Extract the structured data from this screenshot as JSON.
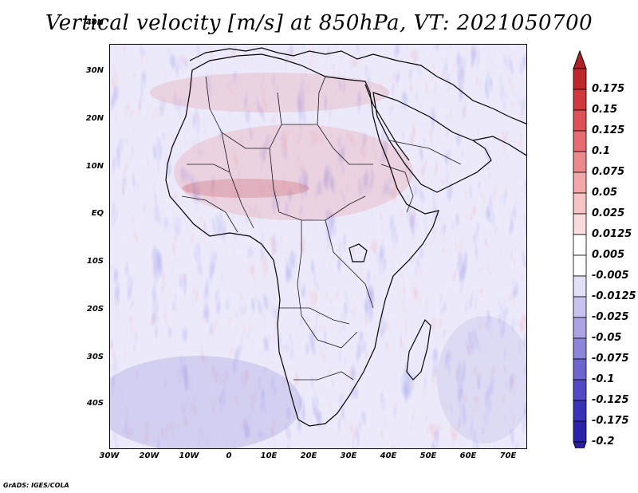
{
  "title": "Vertical velocity [m/s] at 850hPa, VT: 2021050700",
  "footer": "GrADS: IGES/COLA",
  "axes": {
    "lat_ticks": [
      "40N",
      "30N",
      "20N",
      "10N",
      "EQ",
      "10S",
      "20S",
      "30S",
      "40S"
    ],
    "lon_ticks": [
      "30W",
      "20W",
      "10W",
      "0",
      "10E",
      "20E",
      "30E",
      "40E",
      "50E",
      "60E",
      "70E"
    ]
  },
  "colorbar": {
    "labels": [
      "0.175",
      "0.15",
      "0.125",
      "0.1",
      "0.075",
      "0.05",
      "0.025",
      "0.0125",
      "0.005",
      "-0.005",
      "-0.0125",
      "-0.025",
      "-0.05",
      "-0.075",
      "-0.1",
      "-0.125",
      "-0.175",
      "-0.2"
    ],
    "colors": [
      "#c0272d",
      "#d03a3f",
      "#dc5257",
      "#e56c70",
      "#ec898c",
      "#f2a7a9",
      "#f7c4c5",
      "#fadcdd",
      "#ffffff",
      "#ffffff",
      "#e2e0f6",
      "#c7c3ee",
      "#aaa4e4",
      "#8d85da",
      "#6e66cf",
      "#534bc3",
      "#3b33b6",
      "#2a22a8"
    ],
    "top_arrow_color": "#b02028",
    "bottom_arrow_color": "#2a1fa0"
  }
}
